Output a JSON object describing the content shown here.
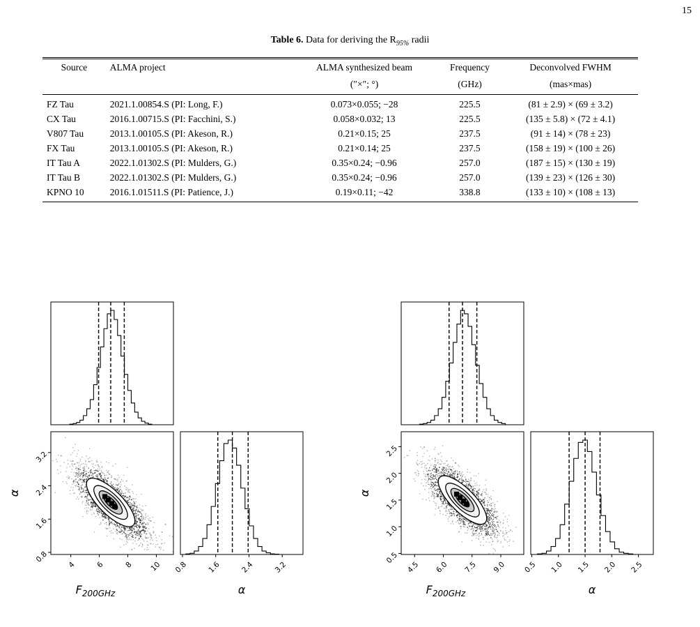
{
  "page_number": "15",
  "table": {
    "caption_label": "Table 6.",
    "caption_text": "Data for deriving the R",
    "caption_sub": "95%",
    "caption_tail": " radii",
    "headers": [
      "Source",
      "ALMA project",
      "ALMA synthesized beam",
      "Frequency",
      "Deconvolved FWHM"
    ],
    "units": [
      "",
      "",
      "(″×″; °)",
      "(GHz)",
      "(mas×mas)"
    ],
    "rows": [
      [
        "FZ Tau",
        "2021.1.00854.S (PI: Long, F.)",
        "0.073×0.055; −28",
        "225.5",
        "(81 ± 2.9) × (69 ± 3.2)"
      ],
      [
        "CX Tau",
        "2016.1.00715.S (PI: Facchini, S.)",
        "0.058×0.032; 13",
        "225.5",
        "(135 ± 5.8) × (72 ± 4.1)"
      ],
      [
        "V807 Tau",
        "2013.1.00105.S (PI: Akeson, R.)",
        "0.21×0.15; 25",
        "237.5",
        "(91 ± 14) × (78 ± 23)"
      ],
      [
        "FX Tau",
        "2013.1.00105.S (PI: Akeson, R.)",
        "0.21×0.14; 25",
        "237.5",
        "(158 ± 19) × (100 ± 26)"
      ],
      [
        "IT Tau A",
        "2022.1.01302.S (PI: Mulders, G.)",
        "0.35×0.24; −0.96",
        "257.0",
        "(187 ± 15) × (130 ± 19)"
      ],
      [
        "IT Tau B",
        "2022.1.01302.S (PI: Mulders, G.)",
        "0.35×0.24; −0.96",
        "257.0",
        "(139 ± 23) × (126 ± 30)"
      ],
      [
        "KPNO 10",
        "2016.1.01511.S (PI: Patience, J.)",
        "0.19×0.11; −42",
        "338.8",
        "(133 ± 10) × (108 ± 13)"
      ]
    ]
  },
  "corner_plots": [
    {
      "x_label_main": "F",
      "x_label_sub": "200GHz",
      "y_label": "α",
      "alpha_label": "α",
      "f_ticks": [
        "4",
        "6",
        "8",
        "10"
      ],
      "f_tick_values": [
        4,
        6,
        8,
        10
      ],
      "f_range": [
        2.6,
        11.2
      ],
      "alpha_ticks": [
        "0.8",
        "1.6",
        "2.4",
        "3.2"
      ],
      "alpha_tick_values": [
        0.8,
        1.6,
        2.4,
        3.2
      ],
      "alpha_range": [
        0.75,
        3.7
      ],
      "f_quantiles": [
        5.95,
        6.8,
        7.75
      ],
      "alpha_quantiles": [
        1.65,
        2.0,
        2.38
      ],
      "f_hist": [
        0.5,
        1,
        2,
        4,
        8,
        14,
        22,
        35,
        50,
        68,
        84,
        97,
        100,
        92,
        78,
        60,
        44,
        30,
        19,
        11,
        6,
        3,
        1.5,
        0.5
      ],
      "alpha_hist": [
        0.5,
        1,
        3,
        7,
        14,
        26,
        42,
        62,
        82,
        97,
        100,
        93,
        78,
        58,
        40,
        25,
        14,
        7,
        3,
        1.5,
        0.5,
        0.3
      ],
      "f_mean": 6.8,
      "alpha_mean": 2.0,
      "f_sigma": 0.9,
      "alpha_sigma": 0.35
    },
    {
      "x_label_main": "F",
      "x_label_sub": "200GHz",
      "y_label": "α",
      "alpha_label": "α",
      "f_ticks": [
        "4.5",
        "6.0",
        "7.5",
        "9.0"
      ],
      "f_tick_values": [
        4.5,
        6.0,
        7.5,
        9.0
      ],
      "f_range": [
        3.8,
        10.2
      ],
      "alpha_ticks": [
        "0.5",
        "1.0",
        "1.5",
        "2.0",
        "2.5"
      ],
      "alpha_tick_values": [
        0.5,
        1.0,
        1.5,
        2.0,
        2.5
      ],
      "alpha_range": [
        0.48,
        2.78
      ],
      "f_quantiles": [
        6.3,
        7.0,
        7.75
      ],
      "alpha_quantiles": [
        1.2,
        1.5,
        1.78
      ],
      "f_hist": [
        0.5,
        1,
        2,
        4,
        8,
        14,
        24,
        38,
        54,
        72,
        88,
        100,
        97,
        86,
        70,
        52,
        36,
        24,
        14,
        8,
        4,
        2,
        1
      ],
      "alpha_hist": [
        0.5,
        1,
        3,
        7,
        14,
        26,
        44,
        64,
        84,
        98,
        100,
        90,
        72,
        52,
        34,
        20,
        11,
        5,
        2,
        1,
        0.5
      ],
      "f_mean": 7.0,
      "alpha_mean": 1.5,
      "f_sigma": 0.7,
      "alpha_sigma": 0.28
    }
  ]
}
